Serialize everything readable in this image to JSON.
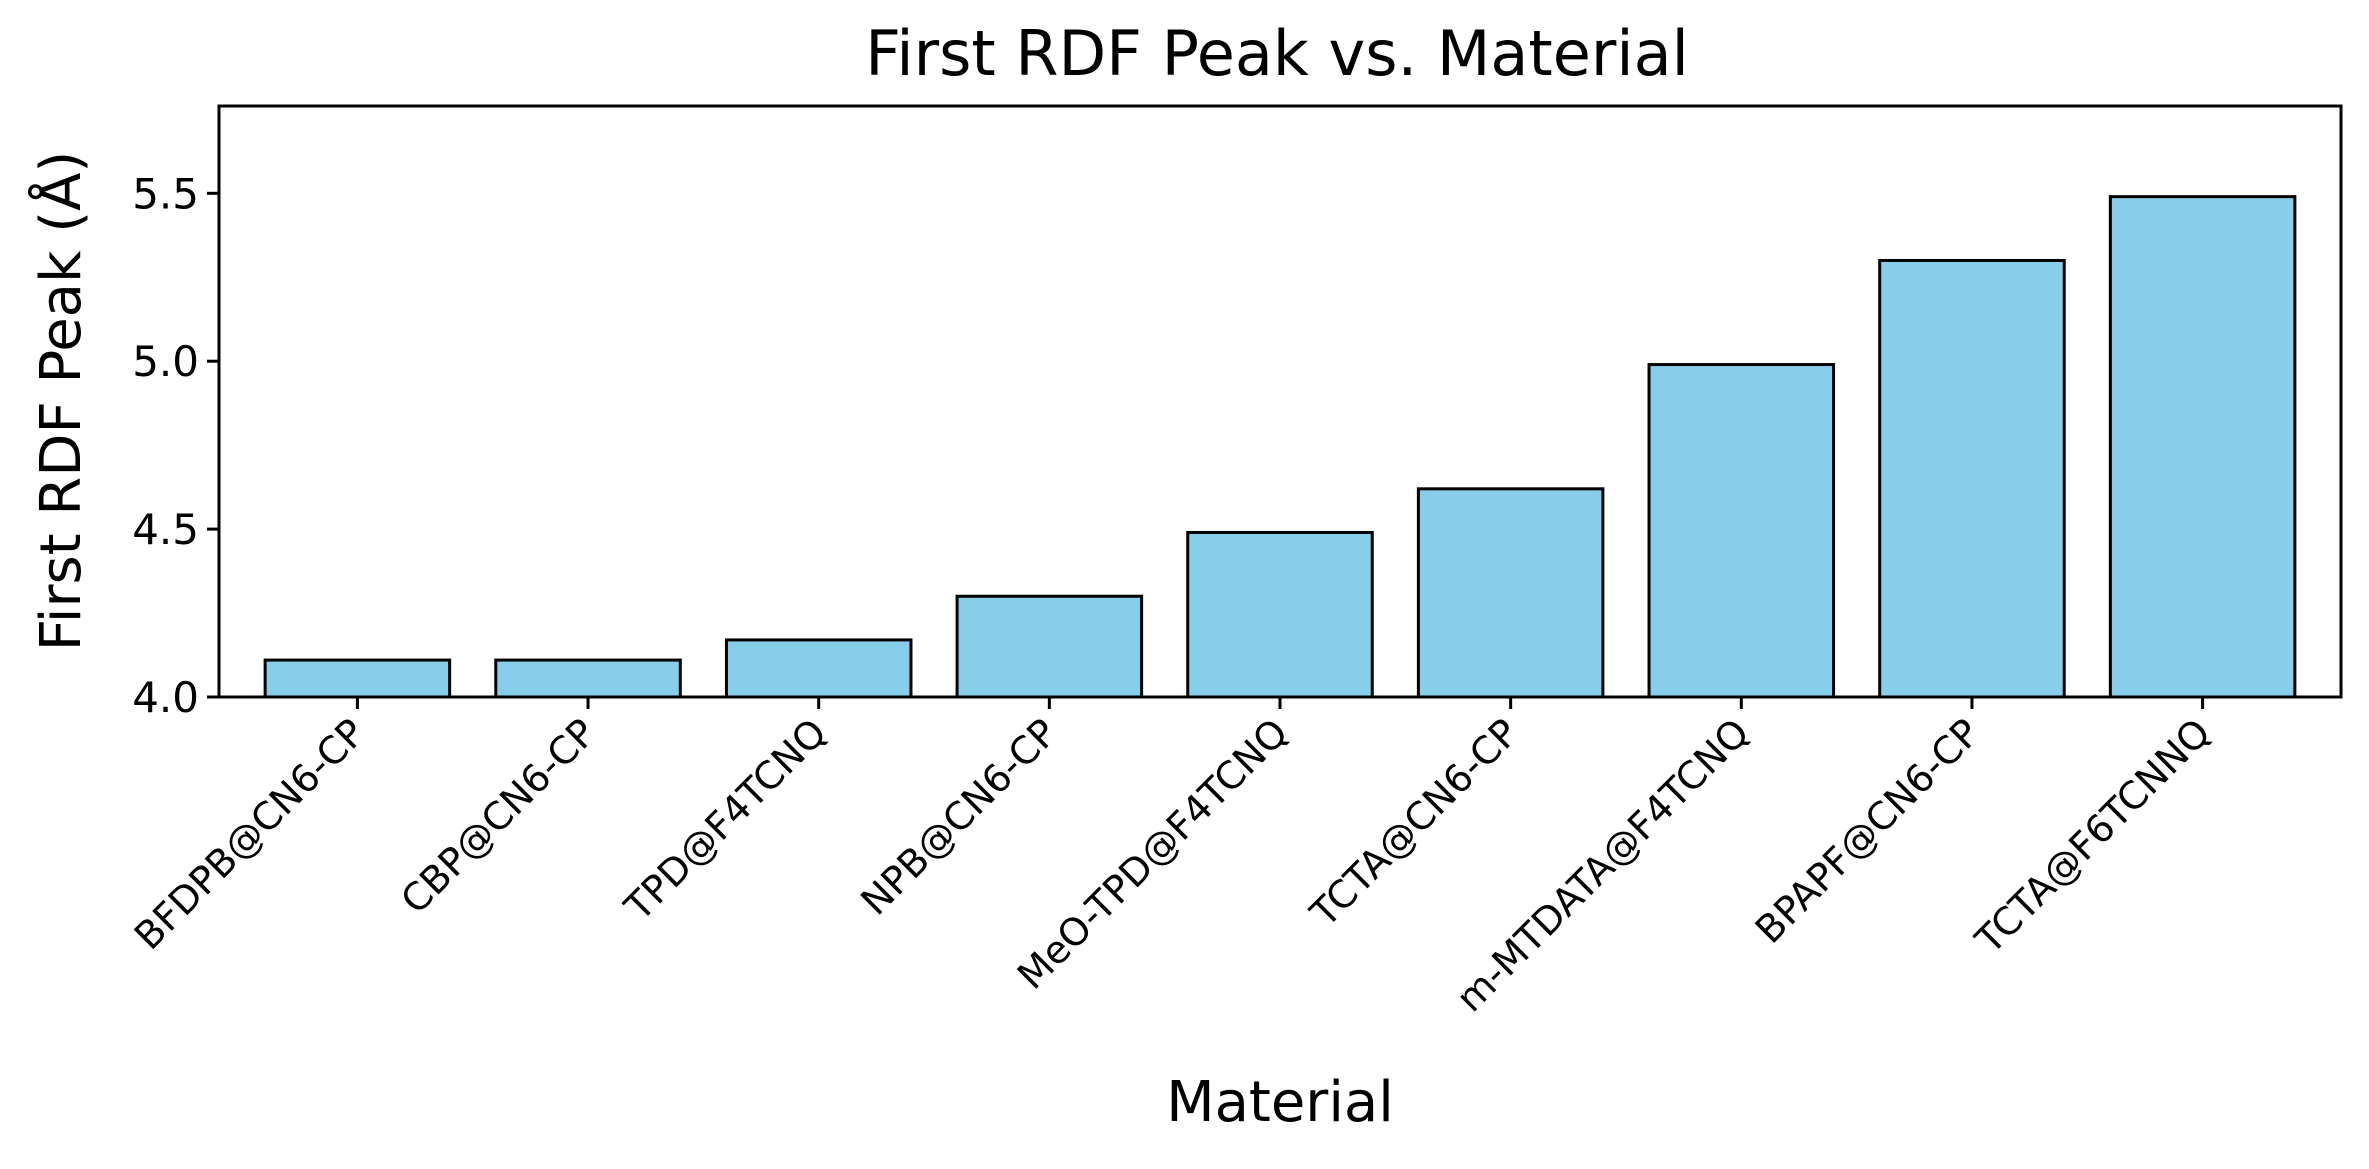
{
  "chart_data": {
    "type": "bar",
    "title": "First RDF Peak vs. Material",
    "xlabel": "Material",
    "ylabel": "First RDF Peak (Å)",
    "categories": [
      "BFDPB@CN6-CP",
      "CBP@CN6-CP",
      "TPD@F4TCNQ",
      "NPB@CN6-CP",
      "MeO-TPD@F4TCNQ",
      "TCTA@CN6-CP",
      "m-MTDATA@F4TCNQ",
      "BPAPF@CN6-CP",
      "TCTA@F6TCNNQ"
    ],
    "values": [
      4.11,
      4.11,
      4.17,
      4.3,
      4.49,
      4.62,
      4.99,
      5.3,
      5.49
    ],
    "ylim": [
      4.0,
      5.76
    ],
    "yticks": [
      "4.0",
      "4.5",
      "5.0",
      "5.5"
    ],
    "bar_color": "#87ceeb",
    "edge_color": "#000000",
    "grid": false,
    "legend": "none"
  }
}
